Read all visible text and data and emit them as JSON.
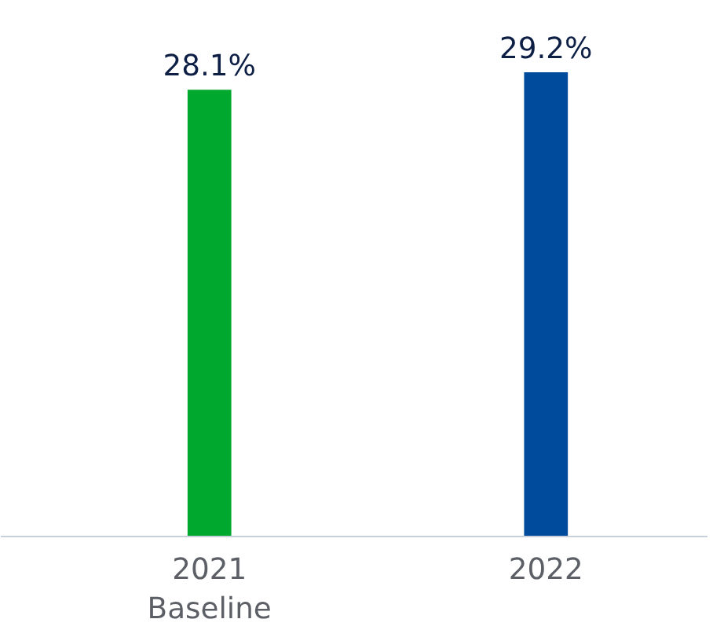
{
  "chart_data": {
    "type": "bar",
    "categories": [
      "2021\nBaseline",
      "2022"
    ],
    "values": [
      28.1,
      29.2
    ],
    "colors": [
      "#00a82d",
      "#004b9b"
    ],
    "value_labels": [
      "28.1%",
      "29.2%"
    ],
    "tick_labels": "x",
    "grid": false
  }
}
